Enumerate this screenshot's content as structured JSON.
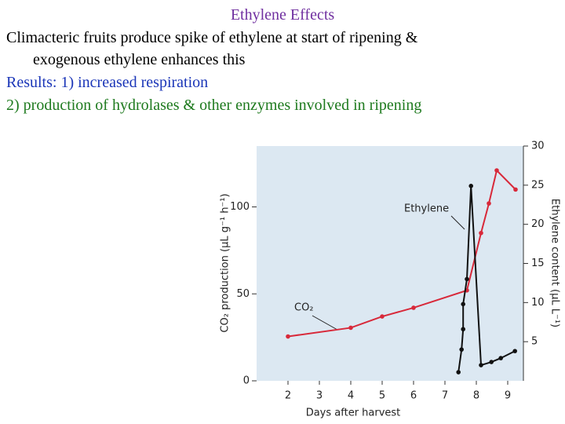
{
  "slide": {
    "title": "Ethylene Effects",
    "line1": "Climacteric fruits produce spike of ethylene at start of ripening &",
    "line2": "exogenous ethylene enhances this",
    "line3": "Results: 1) increased respiration",
    "line4": "2) production of hydrolases & other enzymes involved in ripening"
  },
  "chart_data": {
    "type": "line",
    "x_label": "Days after harvest",
    "y_label": "CO₂ production (μL g⁻¹ h⁻¹)",
    "y2_label": "Ethylene content (μL L⁻¹)",
    "annotations": [
      "Ethylene",
      "CO₂"
    ],
    "xlim": [
      1,
      9.5
    ],
    "xticks": [
      2,
      3,
      4,
      5,
      6,
      7,
      8,
      9
    ],
    "ylim": [
      0,
      135
    ],
    "yticks": [
      0,
      50,
      100
    ],
    "y2lim": [
      0,
      30
    ],
    "y2ticks": [
      5,
      10,
      15,
      20,
      25,
      30
    ],
    "series": [
      {
        "name": "CO₂",
        "color": "#d8293a",
        "x": [
          2,
          4,
          5,
          6,
          7.7,
          8.15,
          8.4,
          8.65,
          9.25
        ],
        "values": [
          25.5,
          30.5,
          37,
          42,
          52,
          85,
          102,
          121,
          110
        ]
      },
      {
        "name": "Ethylene",
        "color": "#111111",
        "axis": "y2",
        "x": [
          7.43,
          7.53,
          7.58,
          7.58,
          7.7,
          7.83,
          8.15,
          8.48,
          8.78,
          9.23
        ],
        "values": [
          1.1,
          4,
          6.6,
          9.8,
          13,
          24.9,
          2,
          2.4,
          2.9,
          3.8
        ]
      }
    ]
  }
}
